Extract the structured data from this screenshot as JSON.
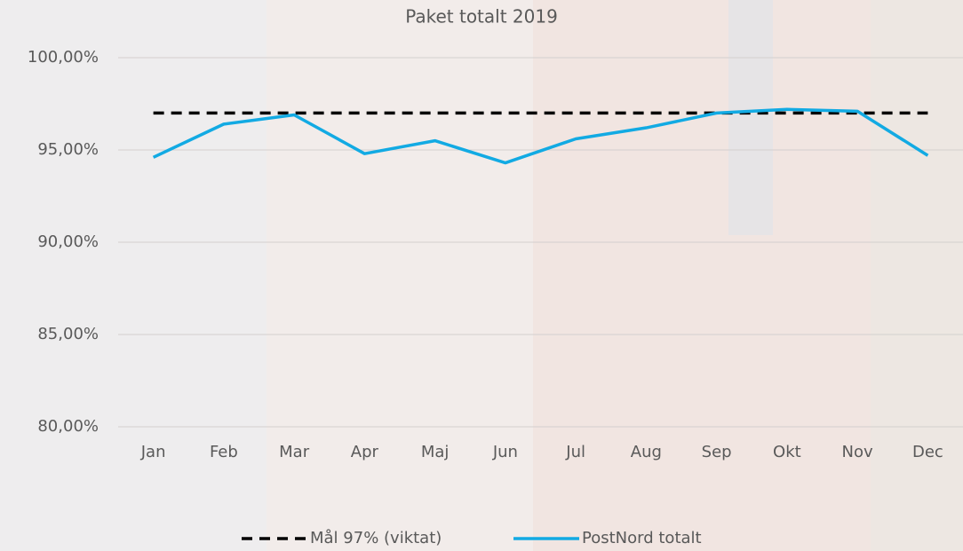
{
  "chart_data": {
    "type": "line",
    "title": "Paket totalt 2019",
    "categories": [
      "Jan",
      "Feb",
      "Mar",
      "Apr",
      "Maj",
      "Jun",
      "Jul",
      "Aug",
      "Sep",
      "Okt",
      "Nov",
      "Dec"
    ],
    "series": [
      {
        "name": "Mål 97% (viktat)",
        "color": "#000000",
        "dashed": true,
        "values": [
          97,
          97,
          97,
          97,
          97,
          97,
          97,
          97,
          97,
          97,
          97,
          97
        ]
      },
      {
        "name": "PostNord totalt",
        "color": "#12aae3",
        "dashed": false,
        "values": [
          94.6,
          96.4,
          96.9,
          94.8,
          95.5,
          94.3,
          95.6,
          96.2,
          97.0,
          97.2,
          97.1,
          94.7
        ]
      }
    ],
    "ylim": [
      80,
      100
    ],
    "yticks": [
      {
        "value": 80,
        "label": "80,00%"
      },
      {
        "value": 85,
        "label": "85,00%"
      },
      {
        "value": 90,
        "label": "90,00%"
      },
      {
        "value": 95,
        "label": "95,00%"
      },
      {
        "value": 100,
        "label": "100,00%"
      }
    ],
    "grid": true,
    "legend": "bottom"
  }
}
